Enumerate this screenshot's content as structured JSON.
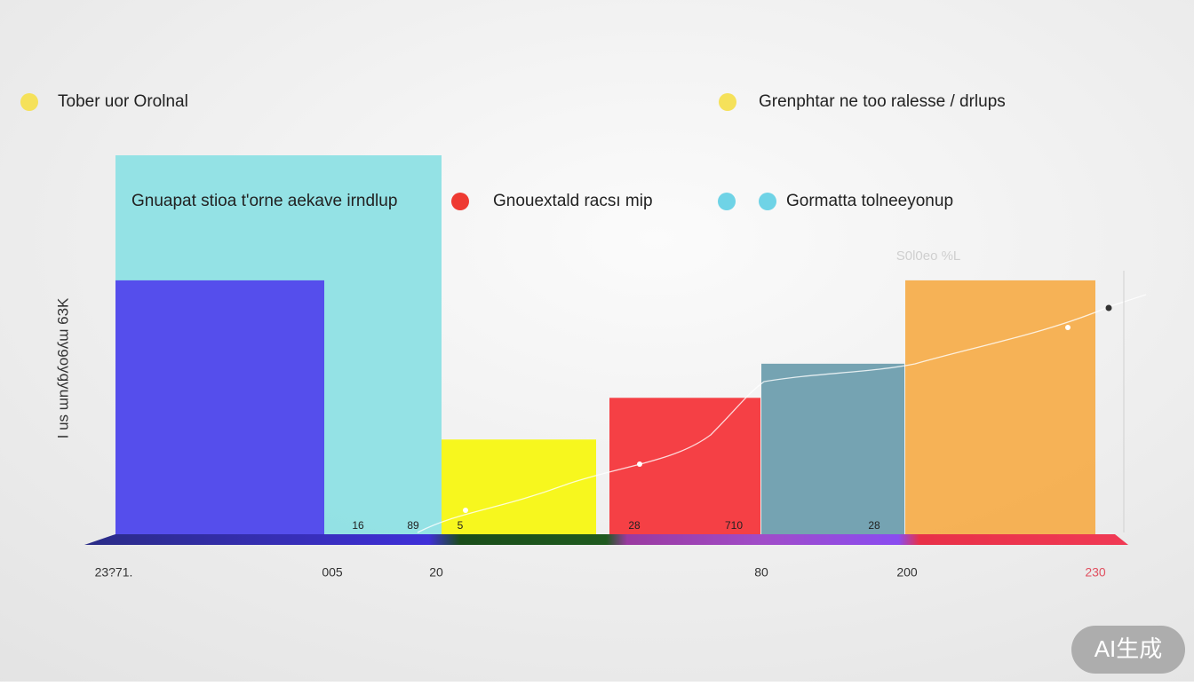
{
  "chart_data": {
    "type": "bar",
    "y_axis_title": "I us   ɯnʎɓʎo6ʎɯ   63K",
    "faint_label": "S0l0eo %L",
    "values": [
      100,
      67,
      25,
      36,
      45,
      67
    ],
    "colors": [
      "#8ee0e4",
      "#5146ec",
      "#f7f712",
      "#f4363b",
      "#6e9eae",
      "#f5ae4d"
    ],
    "ylim": [
      0,
      100
    ],
    "bar_labels": [
      "16",
      "89",
      "5",
      "28",
      "710",
      "28"
    ],
    "xtick_labels": [
      "23?71.",
      "005",
      "20",
      "80",
      "200",
      "230"
    ],
    "annotations": [
      {
        "text": "Tober uor Orolnal",
        "color": "#f5e15a"
      },
      {
        "text": "Grenphtar ne too ralesse / drlups",
        "color": "#f5e15a"
      },
      {
        "text": "Gnuapat  stioa t'orne aekave irndlup",
        "color": null
      },
      {
        "text": "Gnouextald racsı mip",
        "color": "#ee3a32"
      },
      {
        "text": "Gormatta tolneeyonup",
        "color": "#6fd3e6"
      }
    ],
    "watermark": "AI生成"
  }
}
